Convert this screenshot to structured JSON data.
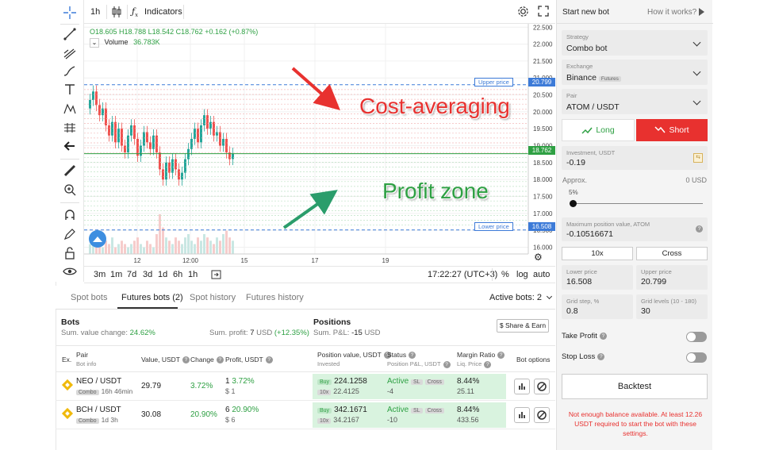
{
  "topbar": {
    "interval": "1h",
    "indicators_label": "Indicators"
  },
  "ohlc": {
    "o": "O18.605",
    "h": "H18.788",
    "l": "L18.542",
    "c": "C18.762",
    "change": "+0.162 (+0.87%)"
  },
  "volume": {
    "label": "Volume",
    "value": "36.783K"
  },
  "chart_data": {
    "type": "candlestick",
    "y_ticks": [
      "22.500",
      "22.000",
      "21.500",
      "21.000",
      "20.500",
      "20.000",
      "19.500",
      "19.000",
      "18.500",
      "18.000",
      "17.500",
      "17.000",
      "16.500",
      "16.000"
    ],
    "x_ticks": [
      "12",
      "12:00",
      "15",
      "17",
      "19"
    ],
    "ylim": [
      15.8,
      22.6
    ],
    "upper_price": 20.799,
    "lower_price": 16.508,
    "last_price": 18.762,
    "upper_label": "Upper price",
    "lower_label": "Lower price",
    "upper_value": "20.799",
    "lower_value": "16.508",
    "last_value": "18.762",
    "closes": [
      20.35,
      20.6,
      20.2,
      19.9,
      20.1,
      19.6,
      19.3,
      19.7,
      19.1,
      19.5,
      19.0,
      18.8,
      19.3,
      19.6,
      19.2,
      18.7,
      19.0,
      19.4,
      19.1,
      18.9,
      19.3,
      18.8,
      18.3,
      18.0,
      18.5,
      18.2,
      18.6,
      18.3,
      18.0,
      18.2,
      18.6,
      18.9,
      19.2,
      19.5,
      19.1,
      19.6,
      19.9,
      19.5,
      19.7,
      19.3,
      19.4,
      19.0,
      19.2,
      18.8,
      18.6,
      18.762
    ],
    "opens": [
      20.1,
      20.35,
      20.6,
      20.2,
      19.9,
      20.1,
      19.6,
      19.3,
      19.7,
      19.1,
      19.5,
      19.0,
      18.8,
      19.3,
      19.6,
      19.2,
      18.7,
      19.0,
      19.4,
      19.1,
      18.9,
      19.3,
      18.8,
      18.3,
      18.0,
      18.5,
      18.2,
      18.6,
      18.3,
      18.0,
      18.2,
      18.6,
      18.9,
      19.2,
      19.5,
      19.1,
      19.6,
      19.9,
      19.5,
      19.7,
      19.3,
      19.4,
      19.0,
      19.2,
      18.8,
      18.605
    ],
    "volumes": [
      3,
      4,
      5,
      3,
      2,
      4,
      3,
      5,
      2,
      3,
      4,
      3,
      2,
      3,
      4,
      5,
      3,
      2,
      4,
      3,
      2,
      6,
      12,
      8,
      5,
      4,
      3,
      5,
      4,
      3,
      5,
      6,
      4,
      3,
      5,
      4,
      6,
      5,
      4,
      3,
      5,
      4,
      6,
      7,
      5,
      4
    ]
  },
  "annotations": {
    "cost_averaging": "Cost-averaging",
    "profit_zone": "Profit zone"
  },
  "bottombar": {
    "ranges": [
      "3m",
      "1m",
      "7d",
      "3d",
      "1d",
      "6h",
      "1h"
    ],
    "time": "17:22:27 (UTC+3)",
    "percent": "%",
    "log": "log",
    "auto": "auto"
  },
  "panel": {
    "title": "Start new bot",
    "how_it_works": "How it works?",
    "strategy_label": "Strategy",
    "strategy_value": "Combo bot",
    "exchange_label": "Exchange",
    "exchange_value": "Binance",
    "exchange_badge": "Futures",
    "pair_label": "Pair",
    "pair_value": "ATOM / USDT",
    "long_label": "Long",
    "short_label": "Short",
    "investment_label": "Investment, USDT",
    "investment_value": "-0.19",
    "approx_label": "Approx.",
    "approx_value": "0 USD",
    "slider_pct": "5%",
    "maxpos_label": "Maximum position value, ATOM",
    "maxpos_value": "-0.10516671",
    "leverage": "10x",
    "margin_mode": "Cross",
    "lower_label": "Lower price",
    "lower_value": "16.508",
    "upper_label": "Upper price",
    "upper_value": "20.799",
    "gridstep_label": "Grid step, %",
    "gridstep_value": "0.8",
    "gridlevels_label": "Grid levels (10 - 180)",
    "gridlevels_value": "30",
    "take_profit": "Take Profit",
    "stop_loss": "Stop Loss",
    "backtest": "Backtest",
    "warning": "Not enough balance available. At least 12.26 USDT required to start the bot with these settings."
  },
  "tabs": {
    "spot_bots": "Spot bots",
    "futures_bots": "Futures bots (2)",
    "spot_history": "Spot history",
    "futures_history": "Futures history",
    "active_bots": "Active bots: 2"
  },
  "bots": {
    "title": "Bots",
    "sum_value_label": "Sum. value change:",
    "sum_value": "24.62%",
    "sum_profit_label": "Sum. profit:",
    "sum_profit": "7",
    "sum_profit_unit": "USD",
    "sum_profit_pct": "(+12.35%)"
  },
  "positions": {
    "title": "Positions",
    "sum_pnl_label": "Sum. P&L:",
    "sum_pnl": "-15",
    "sum_pnl_unit": "USD",
    "share_label": "Share & Earn"
  },
  "table": {
    "headers": {
      "ex": "Ex.",
      "pair": "Pair",
      "bot_info": "Bot info",
      "value": "Value, USDT",
      "change": "Change",
      "profit": "Profit, USDT",
      "position": "Position value, USDT",
      "invested": "Invested",
      "status": "Status",
      "pnl": "Position P&L, USDT",
      "margin": "Margin Ratio",
      "liq": "Liq. Price",
      "options": "Bot options"
    },
    "rows": [
      {
        "pair": "NEO / USDT",
        "type": "Combo",
        "age": "16h 46min",
        "value": "29.79",
        "change": "3.72%",
        "profit_count": "1",
        "profit_pct": "3.72%",
        "profit_usd": "$ 1",
        "side": "Buy",
        "position": "224.1258",
        "lev": "10x",
        "invested": "22.4125",
        "status": "Active",
        "sl": "SL",
        "cross": "Cross",
        "pnl": "-4",
        "margin": "8.44%",
        "liq": "25.11"
      },
      {
        "pair": "BCH / USDT",
        "type": "Combo",
        "age": "1d 3h",
        "value": "30.08",
        "change": "20.90%",
        "profit_count": "6",
        "profit_pct": "20.90%",
        "profit_usd": "$ 6",
        "side": "Buy",
        "position": "342.1671",
        "lev": "10x",
        "invested": "34.2167",
        "status": "Active",
        "sl": "SL",
        "cross": "Cross",
        "pnl": "-10",
        "margin": "8.44%",
        "liq": "433.56"
      }
    ]
  },
  "colors": {
    "long": "#2ea043",
    "short": "#e8312f",
    "up_candle": "#26a69a",
    "down_candle": "#ef5350",
    "grid_line": "#3d7bd8",
    "last_line": "#2ea043"
  }
}
